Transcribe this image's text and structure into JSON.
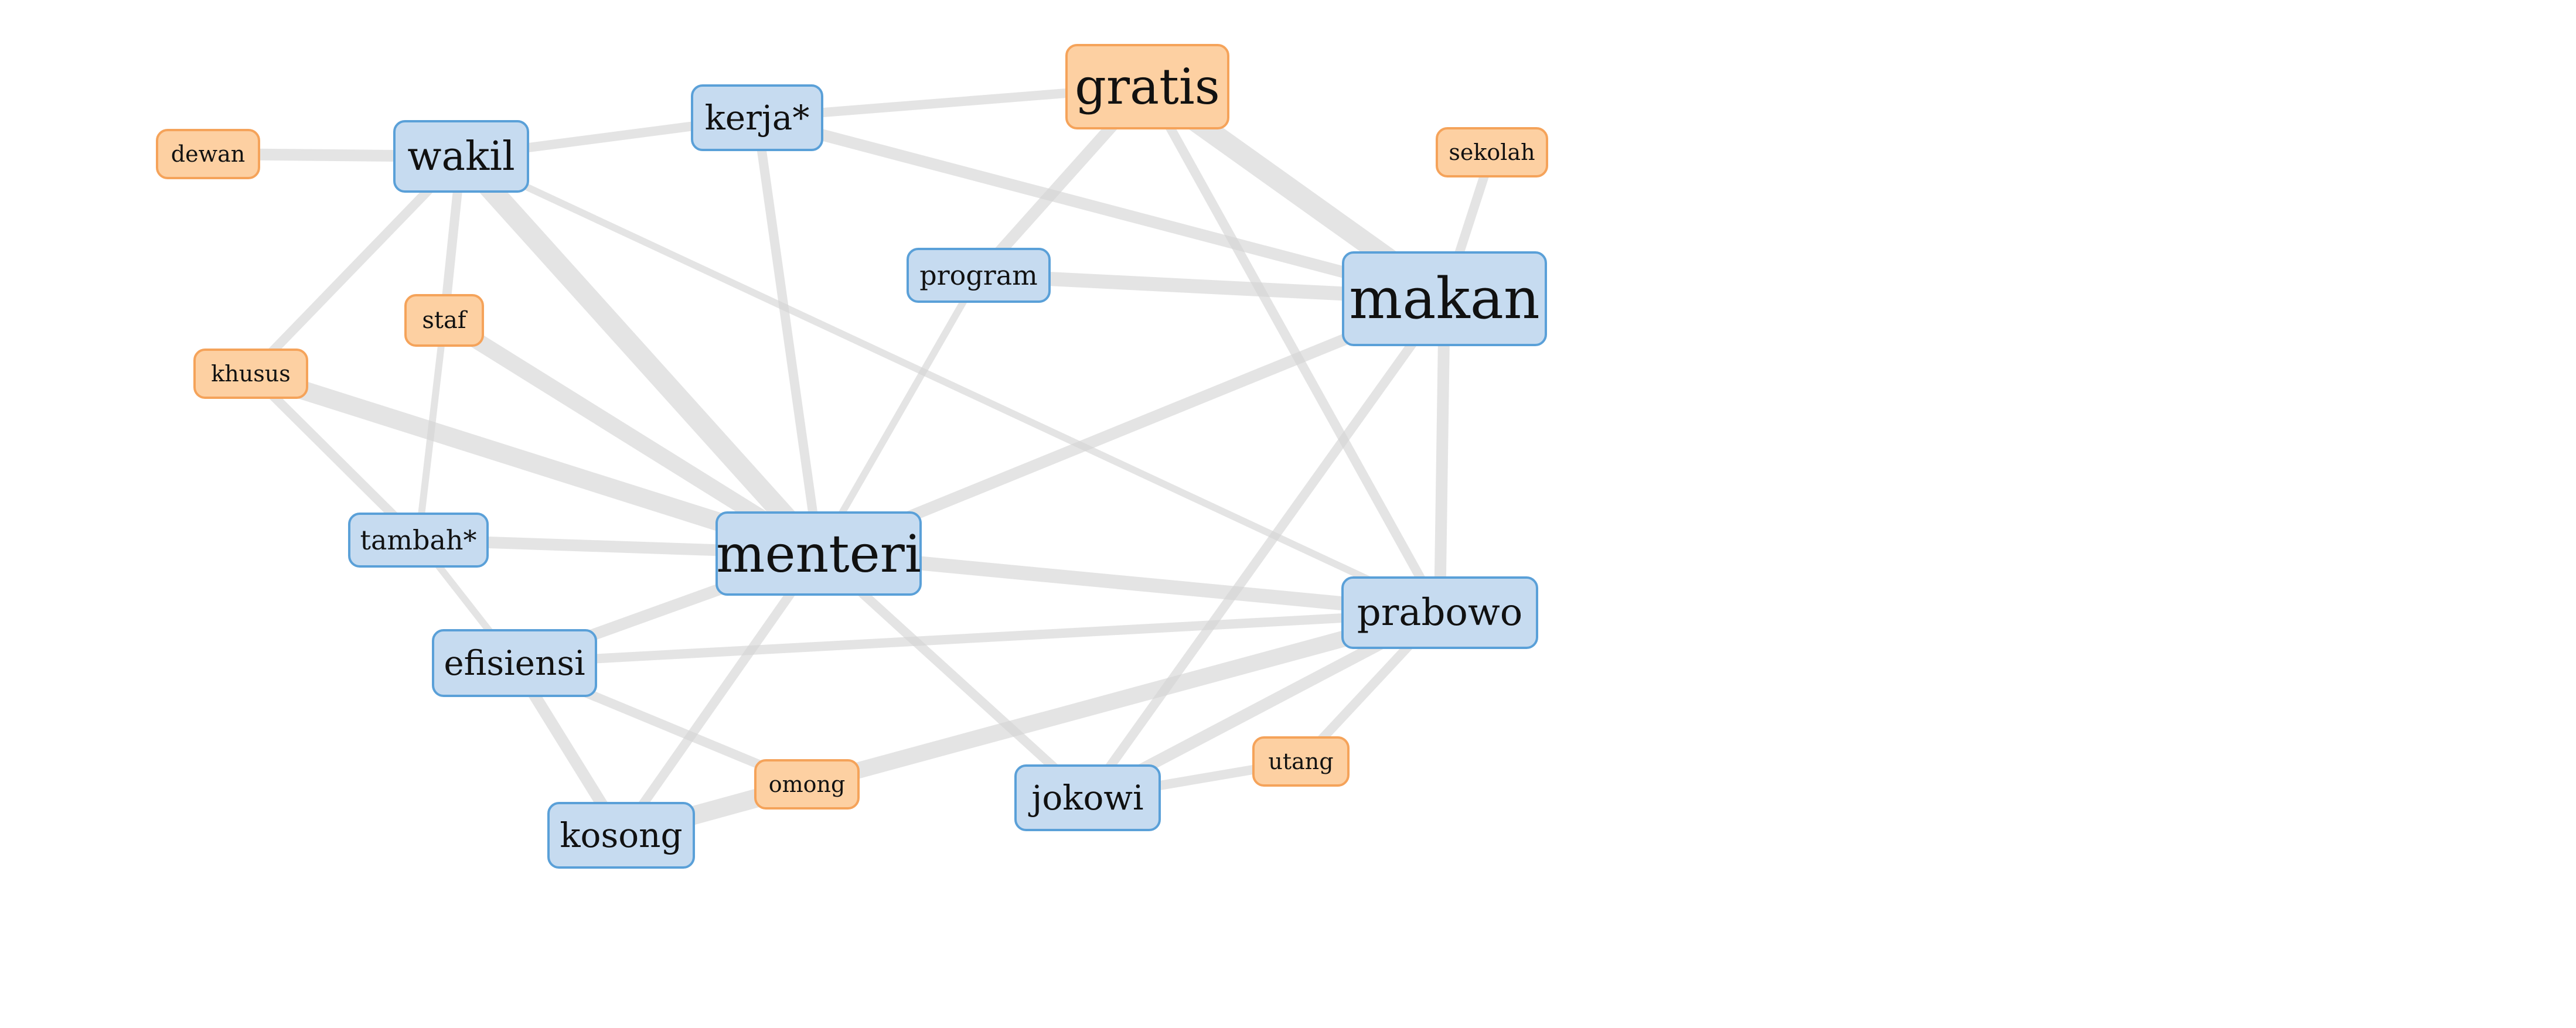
{
  "colors": {
    "blue_fill": "#c6dbf0",
    "blue_border": "#5aa0d8",
    "orange_fill": "#fdd0a2",
    "orange_border": "#f5a35a",
    "edge": "#d3d3d3"
  },
  "nodes": [
    {
      "id": "gratis",
      "label": "gratis",
      "group": "orange"
    },
    {
      "id": "kerja",
      "label": "kerja*",
      "group": "blue"
    },
    {
      "id": "wakil",
      "label": "wakil",
      "group": "blue"
    },
    {
      "id": "dewan",
      "label": "dewan",
      "group": "orange"
    },
    {
      "id": "sekolah",
      "label": "sekolah",
      "group": "orange"
    },
    {
      "id": "program",
      "label": "program",
      "group": "blue"
    },
    {
      "id": "makan",
      "label": "makan",
      "group": "blue"
    },
    {
      "id": "staf",
      "label": "staf",
      "group": "orange"
    },
    {
      "id": "khusus",
      "label": "khusus",
      "group": "orange"
    },
    {
      "id": "tambah",
      "label": "tambah*",
      "group": "blue"
    },
    {
      "id": "menteri",
      "label": "menteri",
      "group": "blue"
    },
    {
      "id": "prabowo",
      "label": "prabowo",
      "group": "blue"
    },
    {
      "id": "efisiensi",
      "label": "efisiensi",
      "group": "blue"
    },
    {
      "id": "utang",
      "label": "utang",
      "group": "orange"
    },
    {
      "id": "omong",
      "label": "omong",
      "group": "orange"
    },
    {
      "id": "jokowi",
      "label": "jokowi",
      "group": "blue"
    },
    {
      "id": "kosong",
      "label": "kosong",
      "group": "blue"
    }
  ],
  "edges": [
    {
      "source": "wakil",
      "target": "dewan",
      "weight": 5
    },
    {
      "source": "wakil",
      "target": "kerja",
      "weight": 4
    },
    {
      "source": "kerja",
      "target": "gratis",
      "weight": 4
    },
    {
      "source": "kerja",
      "target": "makan",
      "weight": 5
    },
    {
      "source": "kerja",
      "target": "menteri",
      "weight": 4
    },
    {
      "source": "gratis",
      "target": "makan",
      "weight": 9
    },
    {
      "source": "gratis",
      "target": "program",
      "weight": 5
    },
    {
      "source": "gratis",
      "target": "prabowo",
      "weight": 4
    },
    {
      "source": "sekolah",
      "target": "makan",
      "weight": 4
    },
    {
      "source": "program",
      "target": "makan",
      "weight": 6
    },
    {
      "source": "program",
      "target": "menteri",
      "weight": 3
    },
    {
      "source": "wakil",
      "target": "khusus",
      "weight": 4
    },
    {
      "source": "wakil",
      "target": "staf",
      "weight": 4
    },
    {
      "source": "wakil",
      "target": "menteri",
      "weight": 9
    },
    {
      "source": "wakil",
      "target": "prabowo",
      "weight": 3
    },
    {
      "source": "staf",
      "target": "menteri",
      "weight": 7
    },
    {
      "source": "staf",
      "target": "tambah",
      "weight": 3
    },
    {
      "source": "khusus",
      "target": "menteri",
      "weight": 8
    },
    {
      "source": "khusus",
      "target": "tambah",
      "weight": 4
    },
    {
      "source": "tambah",
      "target": "menteri",
      "weight": 5
    },
    {
      "source": "tambah",
      "target": "efisiensi",
      "weight": 3
    },
    {
      "source": "makan",
      "target": "menteri",
      "weight": 5
    },
    {
      "source": "makan",
      "target": "prabowo",
      "weight": 5
    },
    {
      "source": "makan",
      "target": "jokowi",
      "weight": 4
    },
    {
      "source": "menteri",
      "target": "prabowo",
      "weight": 6
    },
    {
      "source": "menteri",
      "target": "efisiensi",
      "weight": 5
    },
    {
      "source": "menteri",
      "target": "kosong",
      "weight": 4
    },
    {
      "source": "menteri",
      "target": "jokowi",
      "weight": 4
    },
    {
      "source": "efisiensi",
      "target": "prabowo",
      "weight": 4
    },
    {
      "source": "efisiensi",
      "target": "omong",
      "weight": 4
    },
    {
      "source": "efisiensi",
      "target": "kosong",
      "weight": 5
    },
    {
      "source": "prabowo",
      "target": "omong",
      "weight": 7
    },
    {
      "source": "prabowo",
      "target": "jokowi",
      "weight": 5
    },
    {
      "source": "prabowo",
      "target": "utang",
      "weight": 4
    },
    {
      "source": "omong",
      "target": "kosong",
      "weight": 8
    },
    {
      "source": "jokowi",
      "target": "utang",
      "weight": 4
    }
  ]
}
